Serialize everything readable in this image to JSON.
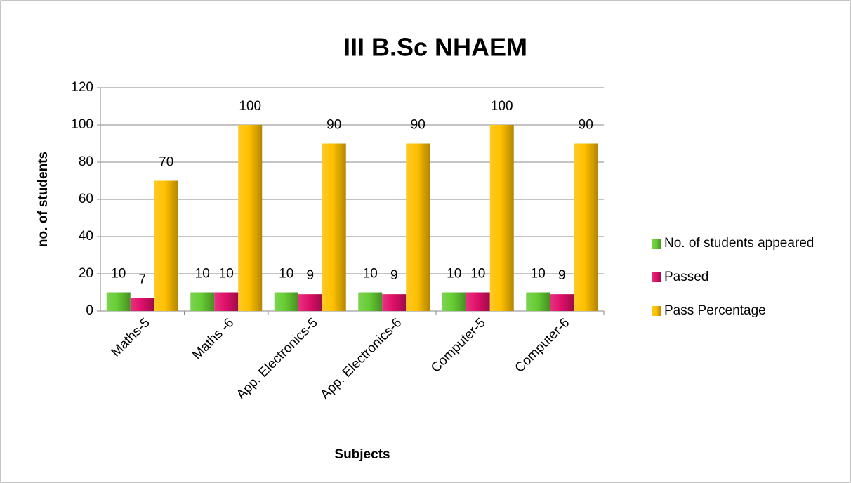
{
  "chart_data": {
    "type": "bar",
    "title": "III B.Sc NHAEM",
    "x_label": "Subjects",
    "y_label": "no. of students",
    "categories": [
      "Maths-5",
      "Maths -6",
      "App. Electronics-5",
      "App. Electronics-6",
      "Computer-5",
      "Computer-6"
    ],
    "series": [
      {
        "name": "No. of students appeared",
        "color": "#66cc33",
        "values": [
          10,
          10,
          10,
          10,
          10,
          10
        ]
      },
      {
        "name": "Passed",
        "color": "#e0106a",
        "values": [
          7,
          10,
          9,
          9,
          10,
          9
        ]
      },
      {
        "name": "Pass Percentage",
        "color": "#ffc000",
        "values": [
          70,
          100,
          90,
          90,
          100,
          90
        ]
      }
    ],
    "ylim": [
      0,
      120
    ],
    "yticks": [
      0,
      20,
      40,
      60,
      80,
      100,
      120
    ],
    "grid": true,
    "legend": "right"
  }
}
